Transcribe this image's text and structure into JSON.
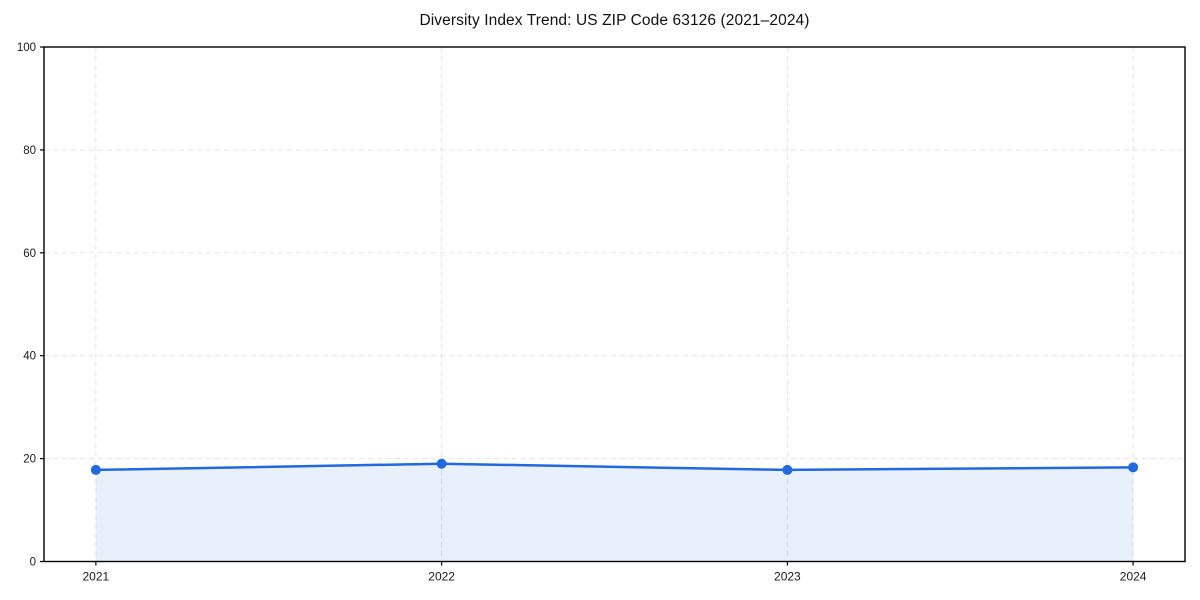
{
  "chart_data": {
    "type": "line",
    "title": "Diversity Index Trend: US ZIP Code 63126 (2021–2024)",
    "categories": [
      "2021",
      "2022",
      "2023",
      "2024"
    ],
    "x": [
      2021,
      2022,
      2023,
      2024
    ],
    "series": [
      {
        "name": "Diversity Index",
        "values": [
          17.8,
          19.0,
          17.8,
          18.3
        ]
      }
    ],
    "xlabel": "",
    "ylabel": "",
    "xlim": [
      2020.85,
      2024.15
    ],
    "ylim": [
      0,
      100
    ],
    "yticks": [
      0,
      20,
      40,
      60,
      80,
      100
    ],
    "grid": "dashed",
    "area_fill": true,
    "legend_position": "none",
    "colors": {
      "line": "#2268df",
      "marker": "#2268df",
      "area_fill": "#2268df",
      "area_opacity": 0.1,
      "grid": "#e3e3e3",
      "axis": "#000000",
      "tick_label": "#1a1a1a",
      "title": "#111111",
      "background": "#ffffff"
    }
  }
}
